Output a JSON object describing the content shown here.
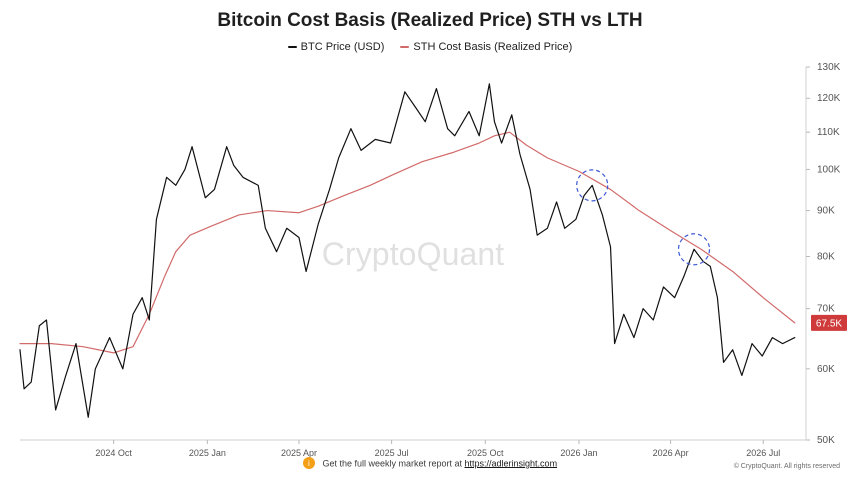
{
  "page": {
    "title": "Bitcoin Cost Basis (Realized Price) STH vs LTH",
    "watermark": "CryptoQuant",
    "footer_icon": "circle-info-icon",
    "footer_text": "Get the full weekly market report at",
    "footer_link": "https://adlerinsight.com",
    "copyright": "© CryptoQuant. All rights reserved",
    "value_label": "67.5K"
  },
  "legend": [
    {
      "name": "BTC Price (USD)",
      "color": "#111111"
    },
    {
      "name": "STH Cost Basis (Realized Price)",
      "color": "#d26a6a"
    }
  ],
  "chart_data": {
    "type": "line",
    "title": "Bitcoin Cost Basis (Realized Price) STH vs LTH",
    "xlabel": "",
    "ylabel": "",
    "x_ticks": [
      "2024 Oct",
      "2025 Jan",
      "2025 Apr",
      "2025 Jul",
      "2025 Oct",
      "2026 Jan",
      "2026 Apr",
      "2026 Jul"
    ],
    "y_ticks": [
      "50K",
      "60K",
      "70K",
      "80K",
      "90K",
      "100K",
      "110K",
      "120K",
      "130K"
    ],
    "y_scale": "log",
    "ylim": [
      50000,
      130000
    ],
    "grid": false,
    "legend_position": "top-center",
    "series": [
      {
        "name": "BTC Price (USD)",
        "color": "#111111",
        "points": [
          [
            "2024-07-01",
            63000
          ],
          [
            "2024-07-05",
            57000
          ],
          [
            "2024-07-12",
            58000
          ],
          [
            "2024-07-20",
            67000
          ],
          [
            "2024-07-27",
            68000
          ],
          [
            "2024-08-05",
            54000
          ],
          [
            "2024-08-15",
            59000
          ],
          [
            "2024-08-25",
            64000
          ],
          [
            "2024-09-06",
            53000
          ],
          [
            "2024-09-13",
            60000
          ],
          [
            "2024-09-27",
            65000
          ],
          [
            "2024-10-10",
            60000
          ],
          [
            "2024-10-20",
            69000
          ],
          [
            "2024-10-29",
            72000
          ],
          [
            "2024-11-05",
            68000
          ],
          [
            "2024-11-12",
            88000
          ],
          [
            "2024-11-22",
            98000
          ],
          [
            "2024-12-01",
            96000
          ],
          [
            "2024-12-10",
            100000
          ],
          [
            "2024-12-17",
            106000
          ],
          [
            "2024-12-30",
            93000
          ],
          [
            "2025-01-08",
            95000
          ],
          [
            "2025-01-20",
            106000
          ],
          [
            "2025-01-27",
            101000
          ],
          [
            "2025-02-05",
            98000
          ],
          [
            "2025-02-20",
            96000
          ],
          [
            "2025-02-27",
            86000
          ],
          [
            "2025-03-10",
            81000
          ],
          [
            "2025-03-20",
            86000
          ],
          [
            "2025-04-01",
            84000
          ],
          [
            "2025-04-08",
            77000
          ],
          [
            "2025-04-20",
            87000
          ],
          [
            "2025-05-01",
            95000
          ],
          [
            "2025-05-10",
            103000
          ],
          [
            "2025-05-22",
            111000
          ],
          [
            "2025-06-01",
            105000
          ],
          [
            "2025-06-15",
            108000
          ],
          [
            "2025-06-30",
            107000
          ],
          [
            "2025-07-14",
            122000
          ],
          [
            "2025-07-25",
            117000
          ],
          [
            "2025-08-03",
            113000
          ],
          [
            "2025-08-14",
            123000
          ],
          [
            "2025-08-25",
            111000
          ],
          [
            "2025-09-01",
            109000
          ],
          [
            "2025-09-15",
            116000
          ],
          [
            "2025-09-25",
            109000
          ],
          [
            "2025-10-05",
            124500
          ],
          [
            "2025-10-10",
            113000
          ],
          [
            "2025-10-17",
            107000
          ],
          [
            "2025-10-27",
            115000
          ],
          [
            "2025-11-04",
            104000
          ],
          [
            "2025-11-14",
            95000
          ],
          [
            "2025-11-21",
            84500
          ],
          [
            "2025-12-01",
            86000
          ],
          [
            "2025-12-10",
            92000
          ],
          [
            "2025-12-18",
            86000
          ],
          [
            "2025-12-29",
            88000
          ],
          [
            "2026-01-06",
            93500
          ],
          [
            "2026-01-14",
            96000
          ],
          [
            "2026-01-24",
            89000
          ],
          [
            "2026-02-01",
            82000
          ],
          [
            "2026-02-05",
            64000
          ],
          [
            "2026-02-14",
            69000
          ],
          [
            "2026-02-24",
            65000
          ],
          [
            "2026-03-05",
            70000
          ],
          [
            "2026-03-15",
            68000
          ],
          [
            "2026-03-25",
            74000
          ],
          [
            "2026-04-05",
            72000
          ],
          [
            "2026-04-14",
            76000
          ],
          [
            "2026-04-24",
            81500
          ],
          [
            "2026-05-03",
            79000
          ],
          [
            "2026-05-10",
            78000
          ],
          [
            "2026-05-17",
            72000
          ],
          [
            "2026-05-23",
            61000
          ],
          [
            "2026-06-01",
            63000
          ],
          [
            "2026-06-10",
            59000
          ],
          [
            "2026-06-20",
            64000
          ],
          [
            "2026-06-30",
            62000
          ],
          [
            "2026-07-10",
            65000
          ],
          [
            "2026-07-20",
            64000
          ],
          [
            "2026-08-01",
            65000
          ]
        ]
      },
      {
        "name": "STH Cost Basis (Realized Price)",
        "color": "#d26a6a",
        "points": [
          [
            "2024-07-01",
            64000
          ],
          [
            "2024-08-01",
            64000
          ],
          [
            "2024-09-01",
            63500
          ],
          [
            "2024-10-01",
            62500
          ],
          [
            "2024-10-20",
            63500
          ],
          [
            "2024-11-05",
            69000
          ],
          [
            "2024-11-20",
            76000
          ],
          [
            "2024-12-01",
            81000
          ],
          [
            "2024-12-15",
            84500
          ],
          [
            "2025-01-05",
            86500
          ],
          [
            "2025-02-01",
            89000
          ],
          [
            "2025-03-01",
            90000
          ],
          [
            "2025-04-01",
            89500
          ],
          [
            "2025-04-20",
            91000
          ],
          [
            "2025-05-15",
            93500
          ],
          [
            "2025-06-10",
            96000
          ],
          [
            "2025-07-01",
            98500
          ],
          [
            "2025-07-31",
            102000
          ],
          [
            "2025-08-31",
            104500
          ],
          [
            "2025-09-25",
            107000
          ],
          [
            "2025-10-10",
            109000
          ],
          [
            "2025-10-25",
            110000
          ],
          [
            "2025-11-10",
            106500
          ],
          [
            "2025-12-01",
            103000
          ],
          [
            "2026-01-01",
            99500
          ],
          [
            "2026-02-01",
            95000
          ],
          [
            "2026-03-01",
            90000
          ],
          [
            "2026-04-01",
            85500
          ],
          [
            "2026-05-01",
            81500
          ],
          [
            "2026-06-01",
            77000
          ],
          [
            "2026-07-01",
            72000
          ],
          [
            "2026-08-01",
            67500
          ]
        ]
      }
    ],
    "annotations": [
      {
        "label": "circle-highlight",
        "x": "2026-01-14",
        "y": 96000
      },
      {
        "label": "circle-highlight",
        "x": "2026-04-24",
        "y": 81500
      }
    ]
  }
}
